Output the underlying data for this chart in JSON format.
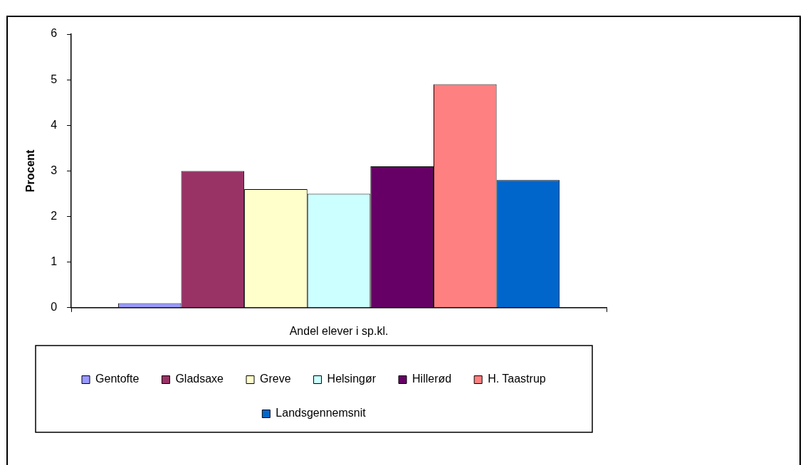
{
  "chart_data": {
    "type": "bar",
    "ylabel": "Procent",
    "categories": [
      "Andel elever i sp.kl."
    ],
    "series": [
      {
        "name": "Gentofte",
        "color": "#9999ff",
        "values": [
          0.1
        ]
      },
      {
        "name": "Gladsaxe",
        "color": "#993366",
        "values": [
          3.0
        ]
      },
      {
        "name": "Greve",
        "color": "#ffffcc",
        "values": [
          2.6
        ]
      },
      {
        "name": "Helsingør",
        "color": "#ccffff",
        "values": [
          2.5
        ]
      },
      {
        "name": "Hillerød",
        "color": "#660066",
        "values": [
          3.1
        ]
      },
      {
        "name": "H. Taastrup",
        "color": "#ff8080",
        "values": [
          4.9
        ]
      },
      {
        "name": "Landsgennemsnit",
        "color": "#0066cc",
        "values": [
          2.8
        ]
      }
    ],
    "ylim": [
      0,
      6
    ],
    "yticks": [
      0,
      1,
      2,
      3,
      4,
      5,
      6
    ],
    "grid": false,
    "legend": "bottom"
  }
}
